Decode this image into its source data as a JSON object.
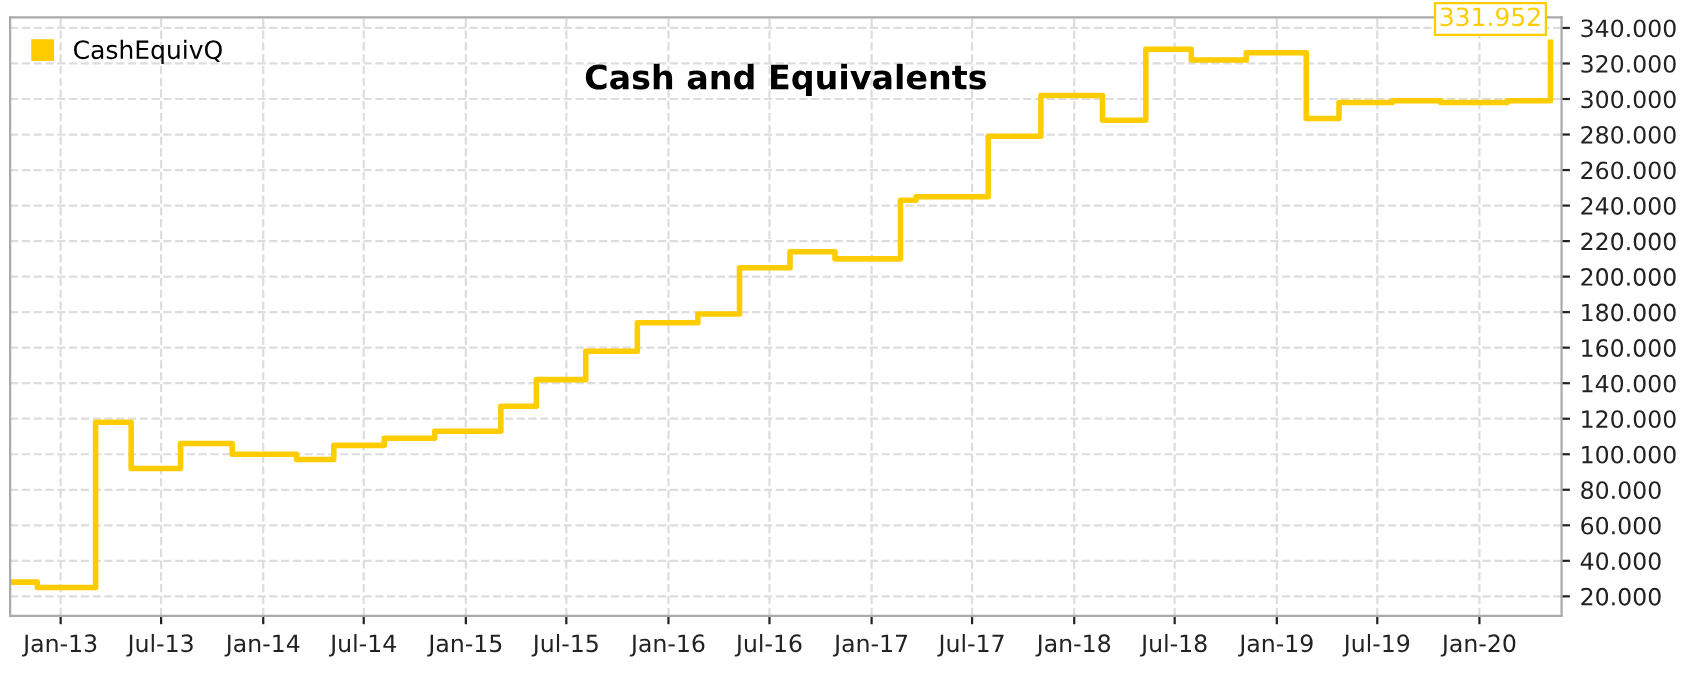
{
  "chart_data": {
    "type": "step",
    "title": "Cash and Equivalents",
    "x": [
      "2012-10-02",
      "2012-11-20",
      "2013-03-05",
      "2013-05-08",
      "2013-08-05",
      "2013-11-06",
      "2014-03-02",
      "2014-05-08",
      "2014-08-07",
      "2014-11-06",
      "2015-03-05",
      "2015-05-08",
      "2015-08-05",
      "2015-11-06",
      "2016-02-23",
      "2016-05-08",
      "2016-08-07",
      "2016-10-27",
      "2017-02-22",
      "2017-03-22",
      "2017-07-30",
      "2017-11-02",
      "2018-02-21",
      "2018-05-10",
      "2018-07-31",
      "2018-11-07",
      "2019-02-23",
      "2019-04-23",
      "2019-07-28",
      "2019-10-23",
      "2020-02-20",
      "2020-05-08"
    ],
    "series": [
      {
        "name": "CashEquivQ",
        "color": "#ffcc00",
        "values": [
          28,
          25,
          118,
          92,
          106,
          100,
          97,
          105,
          109,
          113,
          127,
          142,
          158,
          174,
          179,
          205,
          214,
          210,
          243,
          245,
          279,
          302,
          288,
          328,
          322,
          326,
          289,
          298,
          299,
          298,
          299,
          331.952
        ]
      }
    ],
    "annotations": [
      {
        "text": "331.952",
        "x": "2020-05-08",
        "y": 331.952
      }
    ],
    "xlim": [
      "2012-10-02",
      "2020-05-28"
    ],
    "xticks": [
      {
        "value": "2013-01-01",
        "label": "Jan-13"
      },
      {
        "value": "2013-07-01",
        "label": "Jul-13"
      },
      {
        "value": "2014-01-01",
        "label": "Jan-14"
      },
      {
        "value": "2014-07-01",
        "label": "Jul-14"
      },
      {
        "value": "2015-01-01",
        "label": "Jan-15"
      },
      {
        "value": "2015-07-01",
        "label": "Jul-15"
      },
      {
        "value": "2016-01-01",
        "label": "Jan-16"
      },
      {
        "value": "2016-07-01",
        "label": "Jul-16"
      },
      {
        "value": "2017-01-01",
        "label": "Jan-17"
      },
      {
        "value": "2017-07-01",
        "label": "Jul-17"
      },
      {
        "value": "2018-01-01",
        "label": "Jan-18"
      },
      {
        "value": "2018-07-01",
        "label": "Jul-18"
      },
      {
        "value": "2019-01-01",
        "label": "Jan-19"
      },
      {
        "value": "2019-07-01",
        "label": "Jul-19"
      },
      {
        "value": "2020-01-01",
        "label": "Jan-20"
      }
    ],
    "ylim": [
      9,
      346
    ],
    "yticks": [
      {
        "value": 20,
        "label": "20.000"
      },
      {
        "value": 40,
        "label": "40.000"
      },
      {
        "value": 60,
        "label": "60.000"
      },
      {
        "value": 80,
        "label": "80.000"
      },
      {
        "value": 100,
        "label": "100.000"
      },
      {
        "value": 120,
        "label": "120.000"
      },
      {
        "value": 140,
        "label": "140.000"
      },
      {
        "value": 160,
        "label": "160.000"
      },
      {
        "value": 180,
        "label": "180.000"
      },
      {
        "value": 200,
        "label": "200.000"
      },
      {
        "value": 220,
        "label": "220.000"
      },
      {
        "value": 240,
        "label": "240.000"
      },
      {
        "value": 260,
        "label": "260.000"
      },
      {
        "value": 280,
        "label": "280.000"
      },
      {
        "value": 300,
        "label": "300.000"
      },
      {
        "value": 320,
        "label": "320.000"
      },
      {
        "value": 340,
        "label": "340.000"
      }
    ],
    "grid": true,
    "legend": "top left",
    "line_style": "solid",
    "marker": "none"
  }
}
